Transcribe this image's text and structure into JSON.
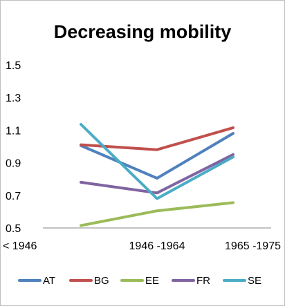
{
  "chart_data": {
    "type": "line",
    "title": "Decreasing mobility",
    "categories": [
      "< 1946",
      "1946 -1964",
      "1965 -1975"
    ],
    "ylim": [
      0.5,
      1.5
    ],
    "yticks": [
      "1.5",
      "1.3",
      "1.1",
      "0.9",
      "0.7",
      "0.5"
    ],
    "grid": false,
    "legend_position": "bottom",
    "series": [
      {
        "name": "AT",
        "color": "#4f81bd",
        "values": [
          1.005,
          0.805,
          1.08
        ]
      },
      {
        "name": "BG",
        "color": "#c0504d",
        "values": [
          1.01,
          0.98,
          1.115
        ]
      },
      {
        "name": "EE",
        "color": "#9bbb59",
        "values": [
          0.515,
          0.605,
          0.655
        ]
      },
      {
        "name": "FR",
        "color": "#8064a2",
        "values": [
          0.78,
          0.715,
          0.95
        ]
      },
      {
        "name": "SE",
        "color": "#4bacc6",
        "values": [
          1.135,
          0.68,
          0.935
        ]
      }
    ]
  }
}
